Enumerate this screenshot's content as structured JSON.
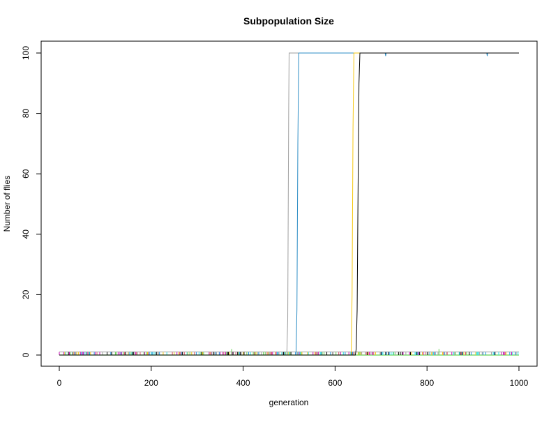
{
  "chart_data": {
    "type": "line",
    "title": "Subpopulation Size",
    "xlabel": "generation",
    "ylabel": "Number of flies",
    "xlim": [
      0,
      1000
    ],
    "ylim": [
      0,
      100
    ],
    "xticks": [
      0,
      200,
      400,
      600,
      800,
      1000
    ],
    "yticks": [
      0,
      20,
      40,
      60,
      80,
      100
    ],
    "grid": false,
    "legend": "none",
    "series": [
      {
        "color": "#9e9e9e",
        "x": [
          0,
          495,
          497,
          499,
          500,
          1000
        ],
        "y": [
          0,
          0,
          12,
          80,
          100,
          100
        ]
      },
      {
        "color": "#2b8cc4",
        "x": [
          0,
          515,
          517,
          519,
          521,
          709,
          710,
          711,
          930,
          931,
          932,
          1000
        ],
        "y": [
          0,
          0,
          15,
          70,
          100,
          100,
          99,
          100,
          100,
          99,
          100,
          100
        ]
      },
      {
        "color": "#f5c710",
        "x": [
          0,
          635,
          637,
          639,
          641,
          1000
        ],
        "y": [
          0,
          0,
          20,
          75,
          100,
          100
        ]
      },
      {
        "color": "#000000",
        "x": [
          0,
          644,
          646,
          648,
          650,
          652,
          654,
          1000
        ],
        "y": [
          0,
          0,
          2,
          15,
          55,
          90,
          100,
          100
        ]
      }
    ],
    "noise_series": {
      "description_colors": [
        "#000000",
        "#df536b",
        "#61d04f",
        "#2297e6",
        "#28e2e5",
        "#cd0bbc",
        "#f5c710",
        "#9e9e9e"
      ],
      "x_range": [
        0,
        1000
      ],
      "y_values": [
        0,
        1
      ],
      "spikes": [
        {
          "x": 375,
          "y": 2
        },
        {
          "x": 826,
          "y": 2
        }
      ]
    }
  }
}
